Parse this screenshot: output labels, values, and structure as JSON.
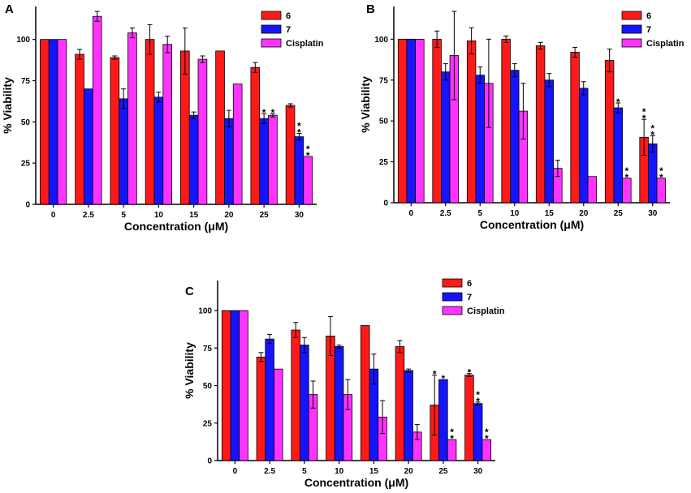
{
  "colors": {
    "s6": "#ff1a1a",
    "s7": "#1414ff",
    "cisplatin": "#ff33ff",
    "axis": "#000000"
  },
  "chart_data": [
    {
      "type": "bar",
      "panel": "A",
      "xlabel": "Concentration (μM)",
      "ylabel": "% Viability",
      "ylim": [
        0,
        120
      ],
      "yticks": [
        0,
        25,
        50,
        75,
        100
      ],
      "categories": [
        "0",
        "2.5",
        "5",
        "10",
        "15",
        "20",
        "25",
        "30"
      ],
      "series": [
        {
          "name": "6",
          "color_key": "s6",
          "values": [
            100,
            91,
            89,
            100,
            93,
            93,
            83,
            60
          ],
          "errors": [
            0,
            3,
            1,
            9,
            14,
            0,
            3,
            1
          ]
        },
        {
          "name": "7",
          "color_key": "s7",
          "values": [
            100,
            70,
            64,
            65,
            54,
            52,
            52,
            41
          ],
          "errors": [
            0,
            0,
            6,
            3,
            2,
            5,
            3,
            2
          ]
        },
        {
          "name": "Cisplatin",
          "color_key": "cisplatin",
          "values": [
            100,
            114,
            104,
            97,
            88,
            73,
            54,
            29
          ],
          "errors": [
            0,
            3,
            3,
            5,
            2,
            0,
            1,
            0
          ]
        }
      ],
      "significance": [
        {
          "category": "25",
          "series": "7",
          "mark": "*"
        },
        {
          "category": "25",
          "series": "Cisplatin",
          "mark": "*"
        },
        {
          "category": "30",
          "series": "7",
          "mark": "**"
        },
        {
          "category": "30",
          "series": "Cisplatin",
          "mark": "**"
        }
      ]
    },
    {
      "type": "bar",
      "panel": "B",
      "xlabel": "Concentration (μM)",
      "ylabel": "% Viability",
      "ylim": [
        0,
        120
      ],
      "yticks": [
        0,
        25,
        50,
        75,
        100
      ],
      "categories": [
        "0",
        "2.5",
        "5",
        "10",
        "15",
        "20",
        "25",
        "30"
      ],
      "series": [
        {
          "name": "6",
          "color_key": "s6",
          "values": [
            100,
            100,
            99,
            100,
            96,
            92,
            87,
            40
          ],
          "errors": [
            0,
            5,
            8,
            2,
            2,
            3,
            7,
            11
          ]
        },
        {
          "name": "7",
          "color_key": "s7",
          "values": [
            100,
            80,
            78,
            81,
            75,
            70,
            58,
            36
          ],
          "errors": [
            0,
            5,
            5,
            4,
            4,
            4,
            3,
            5
          ]
        },
        {
          "name": "Cisplatin",
          "color_key": "cisplatin",
          "values": [
            100,
            90,
            73,
            56,
            21,
            16,
            15,
            15
          ],
          "errors": [
            0,
            27,
            27,
            17,
            5,
            0,
            0,
            0
          ]
        }
      ],
      "significance": [
        {
          "category": "25",
          "series": "7",
          "mark": "*"
        },
        {
          "category": "25",
          "series": "Cisplatin",
          "mark": "**"
        },
        {
          "category": "30",
          "series": "6",
          "mark": "**"
        },
        {
          "category": "30",
          "series": "7",
          "mark": "**"
        },
        {
          "category": "30",
          "series": "Cisplatin",
          "mark": "**"
        }
      ]
    },
    {
      "type": "bar",
      "panel": "C",
      "xlabel": "Concentration (μM)",
      "ylabel": "% Viability",
      "ylim": [
        0,
        120
      ],
      "yticks": [
        0,
        25,
        50,
        75,
        100
      ],
      "categories": [
        "0",
        "2.5",
        "5",
        "10",
        "15",
        "20",
        "25",
        "30"
      ],
      "series": [
        {
          "name": "6",
          "color_key": "s6",
          "values": [
            100,
            69,
            87,
            83,
            90,
            76,
            37,
            57
          ],
          "errors": [
            0,
            3,
            5,
            13,
            0,
            4,
            20,
            1
          ]
        },
        {
          "name": "7",
          "color_key": "s7",
          "values": [
            100,
            81,
            77,
            76,
            61,
            60,
            54,
            38
          ],
          "errors": [
            0,
            3,
            5,
            1,
            10,
            1,
            0,
            1
          ]
        },
        {
          "name": "Cisplatin",
          "color_key": "cisplatin",
          "values": [
            100,
            61,
            44,
            44,
            29,
            19,
            14,
            14
          ],
          "errors": [
            0,
            0,
            9,
            10,
            11,
            5,
            0,
            0
          ]
        }
      ],
      "significance": [
        {
          "category": "25",
          "series": "6",
          "mark": "*"
        },
        {
          "category": "25",
          "series": "7",
          "mark": "*"
        },
        {
          "category": "25",
          "series": "Cisplatin",
          "mark": "**"
        },
        {
          "category": "30",
          "series": "6",
          "mark": "*"
        },
        {
          "category": "30",
          "series": "7",
          "mark": "**"
        },
        {
          "category": "30",
          "series": "Cisplatin",
          "mark": "**"
        }
      ]
    }
  ]
}
